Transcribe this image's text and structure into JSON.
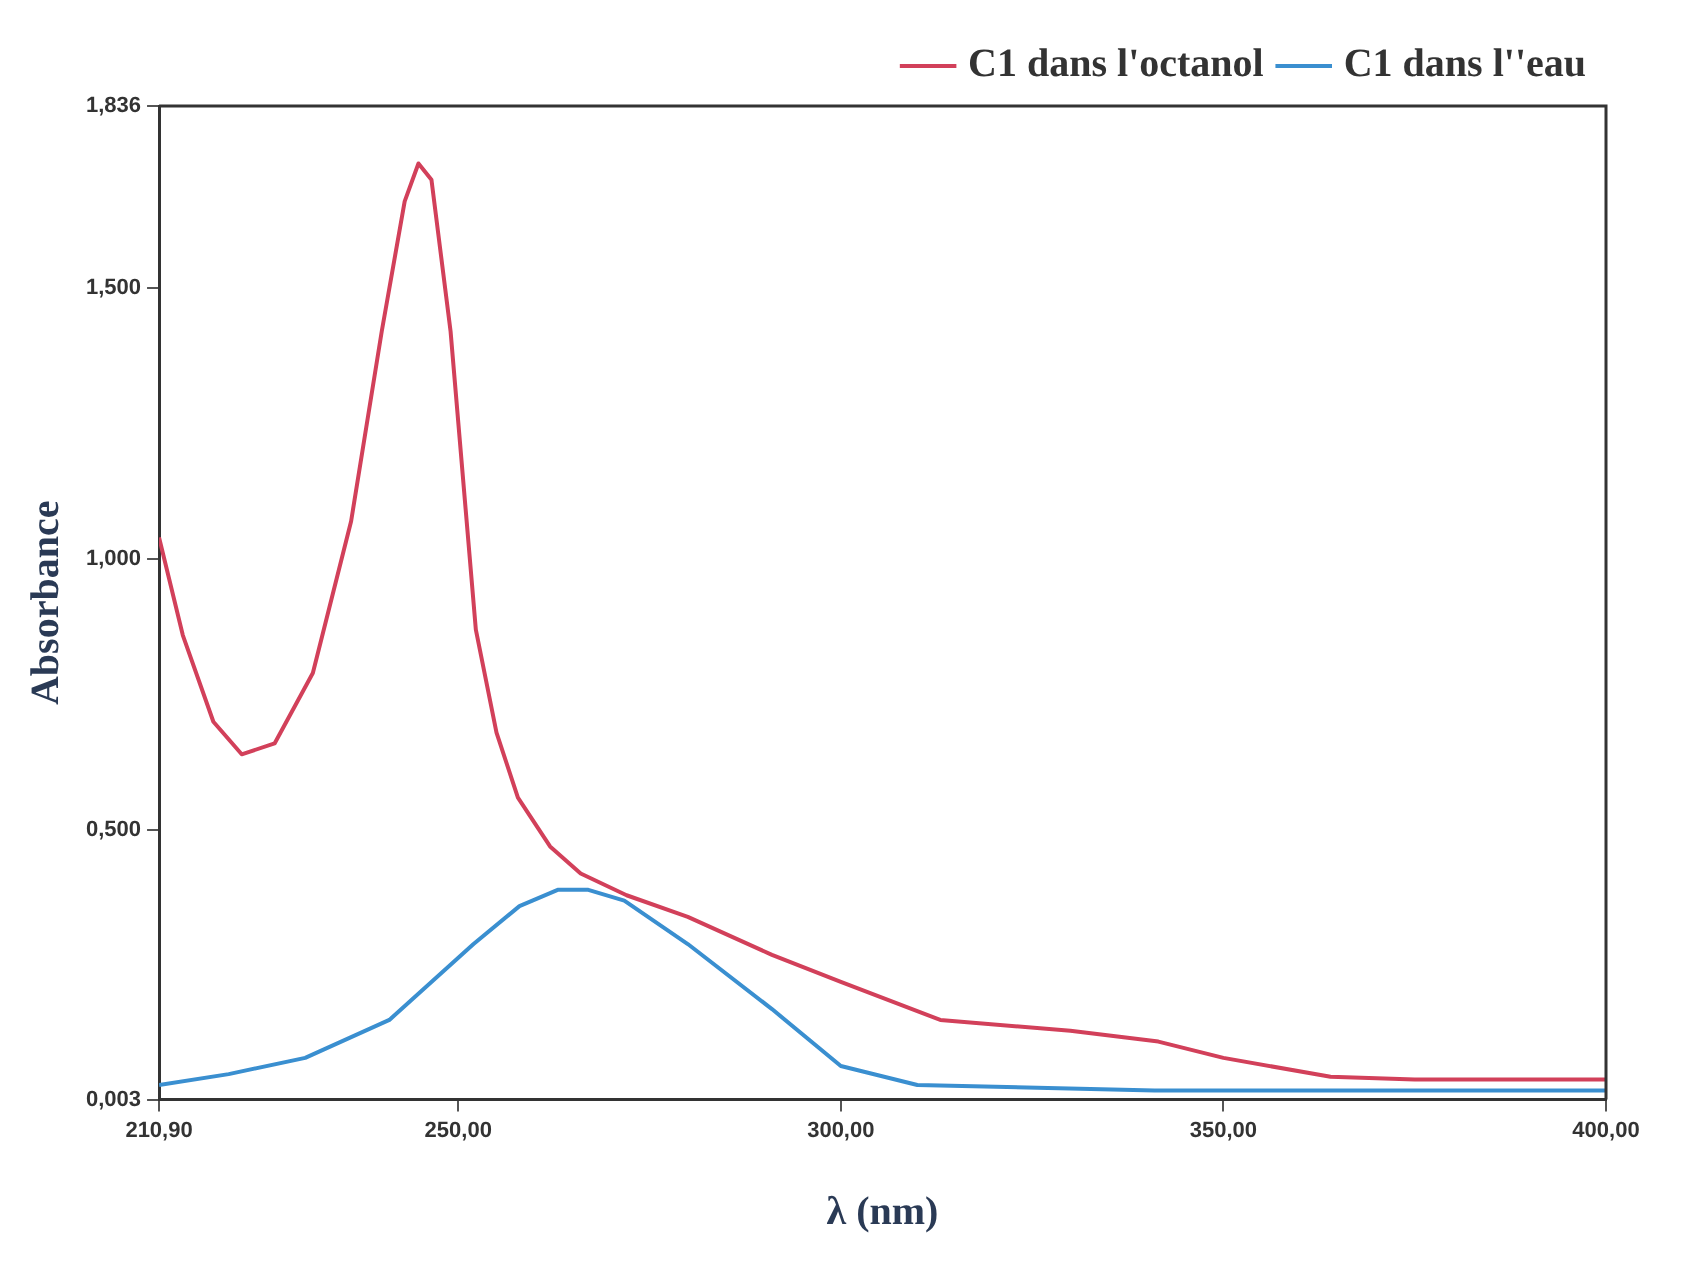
{
  "chart_data": {
    "type": "line",
    "xlabel": "λ (nm)",
    "ylabel": "Absorbance",
    "xlim": [
      210.9,
      400
    ],
    "xticks": [
      {
        "value": 210.9,
        "label": "210,90"
      },
      {
        "value": 250,
        "label": "250,00"
      },
      {
        "value": 300,
        "label": "300,00"
      },
      {
        "value": 350,
        "label": "350,00"
      },
      {
        "value": 400,
        "label": "400,00"
      }
    ],
    "ylim": [
      0.003,
      1.836
    ],
    "yticks": [
      {
        "value": 0.003,
        "label": "0,003"
      },
      {
        "value": 0.5,
        "label": "0,500"
      },
      {
        "value": 1,
        "label": "1,000"
      },
      {
        "value": 1.5,
        "label": "1,500"
      },
      {
        "value": 1.836,
        "label": "1,836"
      }
    ],
    "grid": false,
    "legend": "top right",
    "marker": "none",
    "line_style": "solid",
    "series": [
      {
        "name": "C1 dans l'octanol",
        "color": "#d2405a",
        "x": [
          210.9,
          214,
          218,
          221.7,
          226,
          231,
          236,
          240,
          243,
          244.8,
          246.5,
          249,
          252.3,
          255,
          257.8,
          262,
          266,
          272,
          280,
          291,
          300,
          313,
          330,
          341.5,
          350,
          364,
          375,
          390,
          400
        ],
        "values": [
          1.04,
          0.86,
          0.7,
          0.64,
          0.66,
          0.79,
          1.07,
          1.42,
          1.66,
          1.73,
          1.7,
          1.42,
          0.87,
          0.68,
          0.56,
          0.47,
          0.42,
          0.38,
          0.34,
          0.27,
          0.22,
          0.15,
          0.13,
          0.11,
          0.08,
          0.045,
          0.04,
          0.04,
          0.04
        ]
      },
      {
        "name": "C1 dans l''eau",
        "color": "#3a8fd0",
        "x": [
          210.9,
          220,
          230,
          241,
          252,
          258,
          263,
          267,
          271.7,
          280,
          291,
          300,
          310,
          341,
          370,
          400
        ],
        "values": [
          0.03,
          0.05,
          0.08,
          0.15,
          0.29,
          0.36,
          0.39,
          0.39,
          0.37,
          0.29,
          0.17,
          0.065,
          0.03,
          0.02,
          0.02,
          0.02
        ]
      }
    ]
  }
}
